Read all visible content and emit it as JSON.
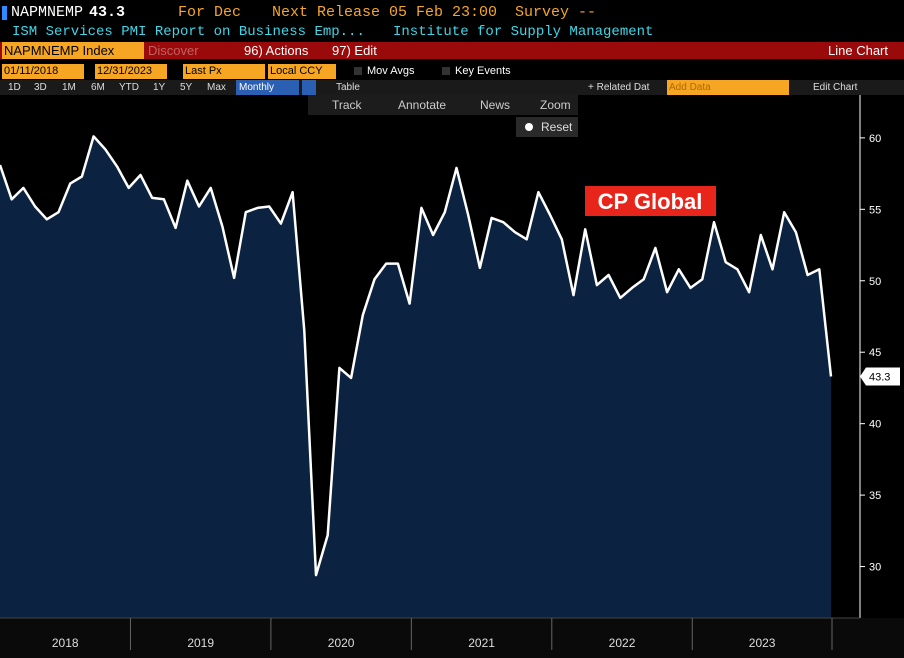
{
  "header": {
    "ticker": "NAPMNEMP",
    "last": "43.3",
    "period": "For Dec",
    "release": "Next Release 05 Feb 23:00",
    "survey": "Survey --",
    "description": "ISM Services PMI Report on Business Emp...",
    "source": "Institute for Supply Management"
  },
  "toolbar": {
    "security": "NAPMNEMP Index",
    "discover": "Discover",
    "actions": "96) Actions",
    "edit": "97) Edit",
    "chart_type": "Line Chart",
    "start_date": "01/11/2018",
    "end_date": "12/31/2023",
    "field": "Last Px",
    "currency": "Local CCY",
    "mov_avgs": "Mov Avgs",
    "key_events": "Key Events",
    "ranges": [
      "1D",
      "3D",
      "1M",
      "6M",
      "YTD",
      "1Y",
      "5Y",
      "Max"
    ],
    "frequency": "Monthly",
    "table": "Table",
    "related": "+ Related Dat",
    "add_data": "Add Data",
    "edit_chart": "Edit Chart",
    "tools": [
      "Track",
      "Annotate",
      "News",
      "Zoom"
    ],
    "reset": "Reset"
  },
  "chart_data": {
    "type": "line",
    "annotation": "CP Global",
    "xticks": [
      "2018",
      "2019",
      "2020",
      "2021",
      "2022",
      "2023"
    ],
    "ylim": [
      26.4,
      63.0
    ],
    "yticks": [
      30,
      35,
      40,
      45,
      50,
      55,
      60
    ],
    "series": [
      {
        "name": "NAPMNEMP Index",
        "color": "#ffffff",
        "fill": "#0b2240",
        "values": [
          58.1,
          55.7,
          56.5,
          55.2,
          54.3,
          54.8,
          56.8,
          57.3,
          60.1,
          59.2,
          58.0,
          56.5,
          57.4,
          55.8,
          55.7,
          53.7,
          57.0,
          55.2,
          56.5,
          53.8,
          50.2,
          54.8,
          55.1,
          55.2,
          54.0,
          56.2,
          46.5,
          29.4,
          32.2,
          43.9,
          43.2,
          47.6,
          50.1,
          51.2,
          51.2,
          48.4,
          55.1,
          53.2,
          54.8,
          57.9,
          54.6,
          50.9,
          54.4,
          54.1,
          53.4,
          52.9,
          56.2,
          54.6,
          52.9,
          49.0,
          53.6,
          49.7,
          50.4,
          48.8,
          49.5,
          50.1,
          52.3,
          49.2,
          50.8,
          49.5,
          50.1,
          54.1,
          51.3,
          50.8,
          49.2,
          53.2,
          50.8,
          54.8,
          53.4,
          50.4,
          50.8,
          43.3
        ]
      }
    ]
  }
}
